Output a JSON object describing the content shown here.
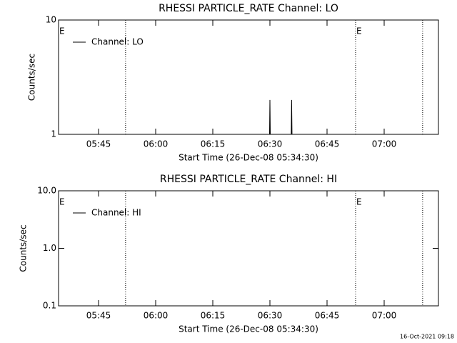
{
  "chart_data": [
    {
      "type": "line",
      "title": "RHESSI PARTICLE_RATE Channel: LO",
      "x_label": "Start Time (26-Dec-08 05:34:30)",
      "y_label": "Counts/sec",
      "y_log": true,
      "ylim": [
        1,
        10
      ],
      "yticks": [
        1,
        10
      ],
      "xlim": [
        334.5,
        434.25
      ],
      "xticks": [
        {
          "value": 345,
          "label": "05:45"
        },
        {
          "value": 360,
          "label": "06:00"
        },
        {
          "value": 375,
          "label": "06:15"
        },
        {
          "value": 390,
          "label": "06:30"
        },
        {
          "value": 405,
          "label": "06:45"
        },
        {
          "value": 420,
          "label": "07:00"
        }
      ],
      "vlines": [
        352.1,
        412.5,
        430.1
      ],
      "annotations": [
        {
          "text": "E",
          "x": 334.5
        },
        {
          "text": "E",
          "x": 412.5
        }
      ],
      "legend": "upper left",
      "series": [
        {
          "name": "Channel: LO",
          "color": "#000000",
          "x": [
            334.5,
            389.9,
            390.0,
            390.1,
            395.6,
            395.7,
            395.8,
            434.25
          ],
          "values": [
            1,
            1,
            2,
            1,
            1,
            2,
            1,
            1
          ]
        }
      ]
    },
    {
      "type": "line",
      "title": "RHESSI PARTICLE_RATE Channel: HI",
      "x_label": "Start Time (26-Dec-08 05:34:30)",
      "y_label": "Counts/sec",
      "y_log": true,
      "ylim": [
        0.1,
        10
      ],
      "yticks": [
        0.1,
        {
          "value": 1,
          "label": "1.0"
        },
        {
          "value": 10,
          "label": "10.0"
        }
      ],
      "xlim": [
        334.5,
        434.25
      ],
      "xticks": [
        {
          "value": 345,
          "label": "05:45"
        },
        {
          "value": 360,
          "label": "06:00"
        },
        {
          "value": 375,
          "label": "06:15"
        },
        {
          "value": 390,
          "label": "06:30"
        },
        {
          "value": 405,
          "label": "06:45"
        },
        {
          "value": 420,
          "label": "07:00"
        }
      ],
      "vlines": [
        352.1,
        412.5,
        430.1
      ],
      "annotations": [
        {
          "text": "E",
          "x": 334.5
        },
        {
          "text": "E",
          "x": 412.5
        }
      ],
      "legend": "upper left",
      "series": [
        {
          "name": "Channel: HI",
          "color": "#000000",
          "x": [],
          "values": []
        }
      ]
    }
  ],
  "footer": "16-Oct-2021 09:18"
}
